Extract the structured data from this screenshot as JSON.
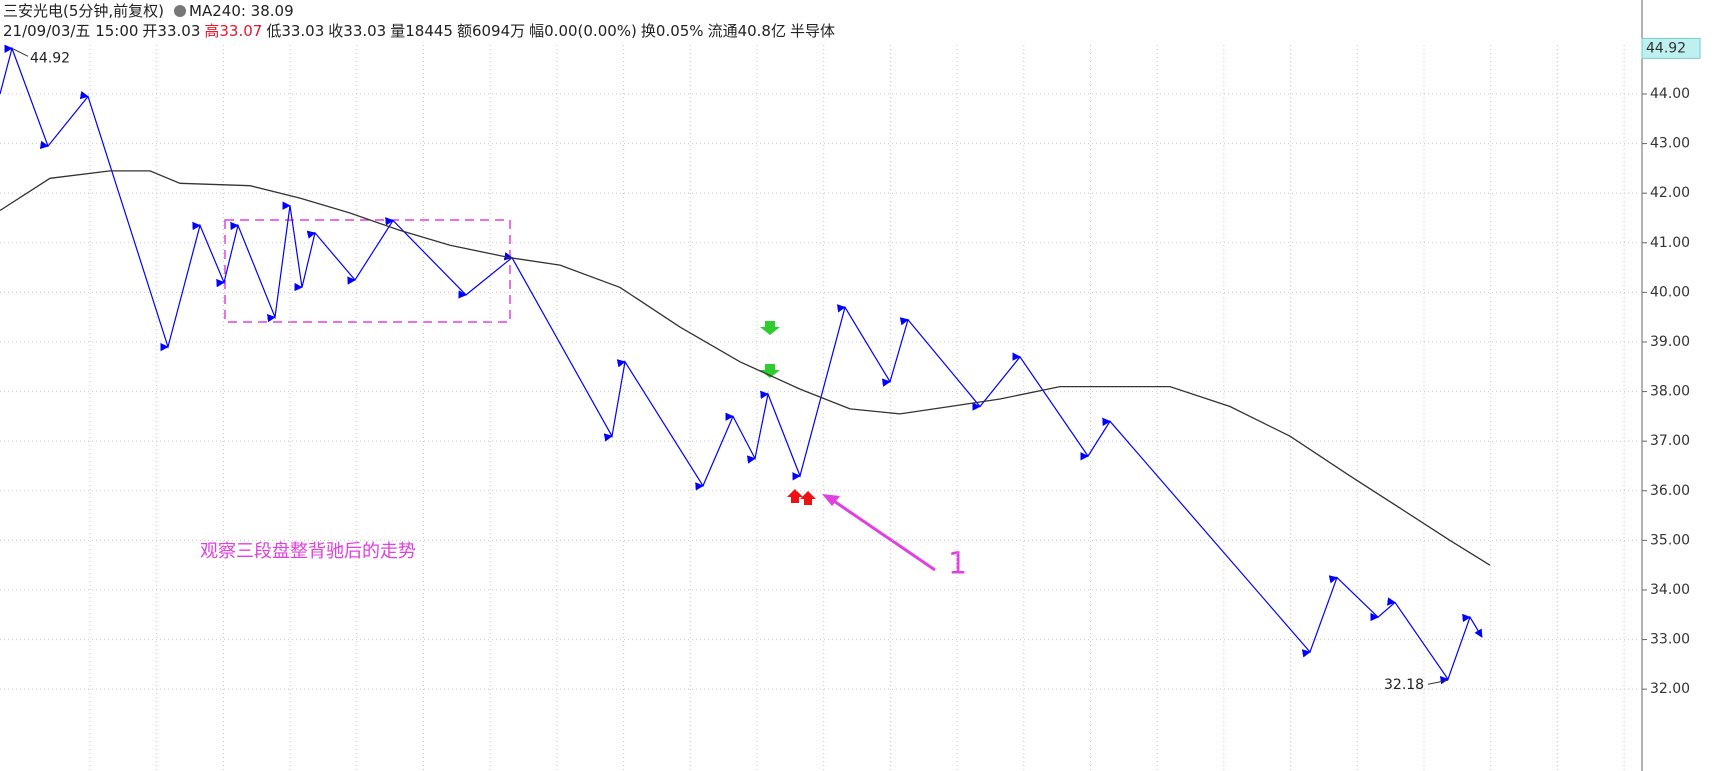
{
  "chart_data": {
    "type": "line",
    "title": "三安光电(5分钟,前复权)",
    "ma_label": "MA240: 38.09",
    "info": [
      {
        "text": "21/09/03/五 15:00"
      },
      {
        "text": "开33.03"
      },
      {
        "text": "高33.07",
        "color": "#e8162b"
      },
      {
        "text": "低33.03"
      },
      {
        "text": "收33.03"
      },
      {
        "text": "量18445"
      },
      {
        "text": "额6094万"
      },
      {
        "text": "幅0.00(0.00%)"
      },
      {
        "text": "换0.05%"
      },
      {
        "text": "流通40.8亿"
      },
      {
        "text": "半导体"
      }
    ],
    "xlim": [
      0,
      1640
    ],
    "ylim": [
      30.35,
      45.895
    ],
    "yticks": [
      {
        "value": 32,
        "label": "32.00"
      },
      {
        "value": 33,
        "label": "33.00"
      },
      {
        "value": 34,
        "label": "34.00"
      },
      {
        "value": 35,
        "label": "35.00"
      },
      {
        "value": 36,
        "label": "36.00"
      },
      {
        "value": 37,
        "label": "37.00"
      },
      {
        "value": 38,
        "label": "38.00"
      },
      {
        "value": 39,
        "label": "39.00"
      },
      {
        "value": 40,
        "label": "40.00"
      },
      {
        "value": 41,
        "label": "41.00"
      },
      {
        "value": 42,
        "label": "42.00"
      },
      {
        "value": 43,
        "label": "43.00"
      },
      {
        "value": 44,
        "label": "44.00"
      }
    ],
    "axis_highlight": 44.92,
    "grid": true,
    "series": [
      {
        "color": "#0000ff",
        "x": [
          0,
          12,
          48,
          88,
          168,
          200,
          224,
          238,
          275,
          290,
          302,
          315,
          355,
          393,
          466,
          512,
          612,
          625,
          703,
          733,
          755,
          768,
          800,
          845,
          890,
          908,
          980,
          1020,
          1088,
          1110,
          1310,
          1337,
          1378,
          1395,
          1448,
          1470,
          1482
        ],
        "values": [
          44.0,
          44.92,
          42.95,
          43.95,
          38.9,
          41.35,
          40.2,
          41.35,
          39.5,
          41.75,
          40.1,
          41.2,
          40.25,
          41.45,
          39.95,
          40.7,
          37.1,
          38.6,
          36.1,
          37.5,
          36.65,
          37.95,
          36.3,
          39.7,
          38.2,
          39.45,
          37.7,
          38.7,
          36.7,
          37.4,
          32.75,
          34.25,
          33.45,
          33.75,
          32.2,
          33.45,
          33.05
        ]
      },
      {
        "color": "#333333",
        "x": [
          0,
          50,
          110,
          150,
          180,
          250,
          300,
          350,
          400,
          450,
          510,
          560,
          620,
          680,
          740,
          800,
          850,
          900,
          950,
          1000,
          1060,
          1170,
          1230,
          1290,
          1350,
          1400,
          1450,
          1490
        ],
        "values": [
          41.65,
          42.3,
          42.45,
          42.45,
          42.2,
          42.15,
          41.9,
          41.6,
          41.25,
          40.95,
          40.7,
          40.55,
          40.1,
          39.3,
          38.6,
          38.05,
          37.65,
          37.55,
          37.7,
          37.85,
          38.1,
          38.1,
          37.7,
          37.1,
          36.3,
          35.65,
          35.0,
          34.5
        ]
      }
    ],
    "extremes": [
      {
        "x": 12,
        "value": 44.92
      },
      {
        "x": 1448,
        "value": 32.18
      }
    ],
    "annotations": [
      {
        "text": "观察三段盘整背驰后的走势"
      },
      {
        "text": "1"
      }
    ]
  }
}
